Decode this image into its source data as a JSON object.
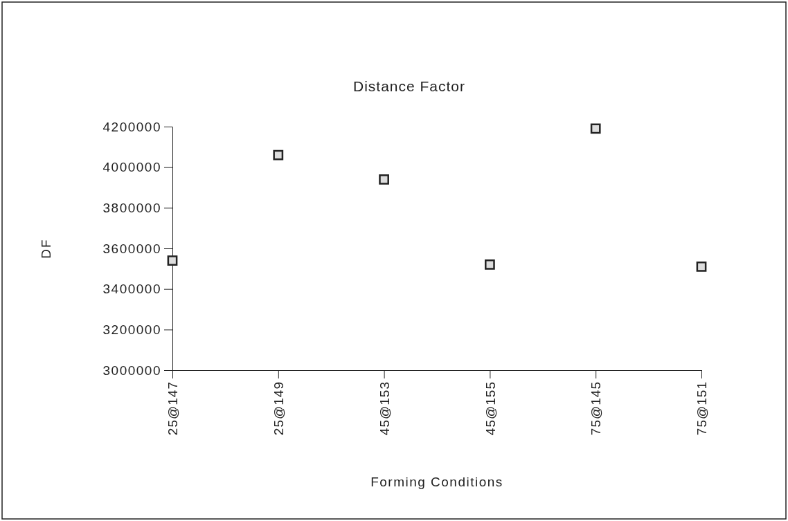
{
  "chart_data": {
    "type": "scatter",
    "title": "Distance Factor",
    "xlabel": "Forming Conditions",
    "ylabel": "DF",
    "categories": [
      "25@147",
      "25@149",
      "45@153",
      "45@155",
      "75@145",
      "75@151"
    ],
    "values": [
      3540000,
      4060000,
      3940000,
      3520000,
      4190000,
      3510000
    ],
    "color": "#222222",
    "marker": "square",
    "ylim": [
      3000000,
      4200000
    ],
    "yticks": [
      3000000,
      3200000,
      3400000,
      3600000,
      3800000,
      4000000,
      4200000
    ],
    "grid": false
  }
}
